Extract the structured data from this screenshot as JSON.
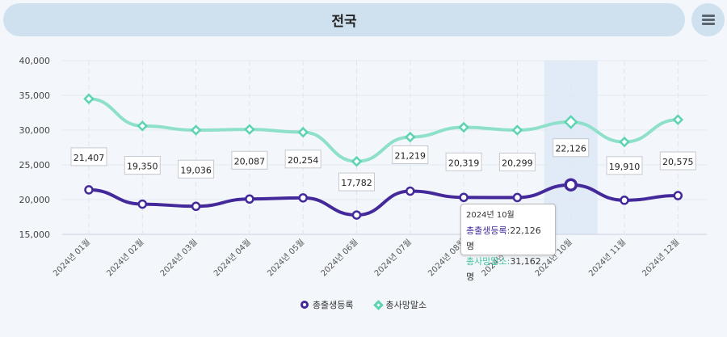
{
  "header": {
    "title": "전국"
  },
  "menu": {
    "icon": "menu-icon"
  },
  "chart_data": {
    "type": "line",
    "categories": [
      "2024년 01월",
      "2024년 02월",
      "2024년 03월",
      "2024년 04월",
      "2024년 05월",
      "2024년 06월",
      "2024년 07월",
      "2024년 08월",
      "2024년 09월",
      "2024년 10월",
      "2024년 11월",
      "2024년 12월"
    ],
    "yticks": [
      "40,000",
      "35,000",
      "30,000",
      "25,000",
      "20,000",
      "15,000"
    ],
    "ylim": [
      15000,
      40000
    ],
    "series": [
      {
        "name": "총출생등록",
        "color": "#43299a",
        "marker": "circle",
        "values": [
          21407,
          19350,
          19036,
          20087,
          20254,
          17782,
          21219,
          20319,
          20299,
          22126,
          19910,
          20575
        ],
        "labels": [
          "21,407",
          "19,350",
          "19,036",
          "20,087",
          "20,254",
          "17,782",
          "21,219",
          "20,319",
          "20,299",
          "22,126",
          "19,910",
          "20,575"
        ]
      },
      {
        "name": "총사망말소",
        "color": "#5cd3b2",
        "marker": "diamond",
        "values": [
          34500,
          30600,
          30000,
          30100,
          29700,
          25500,
          29000,
          30400,
          30000,
          31162,
          28300,
          31500
        ]
      }
    ],
    "highlight_index": 9
  },
  "tooltip": {
    "date": "2024년 10월",
    "row1_label": "총출생등록:",
    "row1_value": "22,126 명",
    "row2_label": "총사망말소:",
    "row2_value": "31,162 명"
  },
  "legend": {
    "item1": "총출생등록",
    "item2": "총사망말소"
  }
}
